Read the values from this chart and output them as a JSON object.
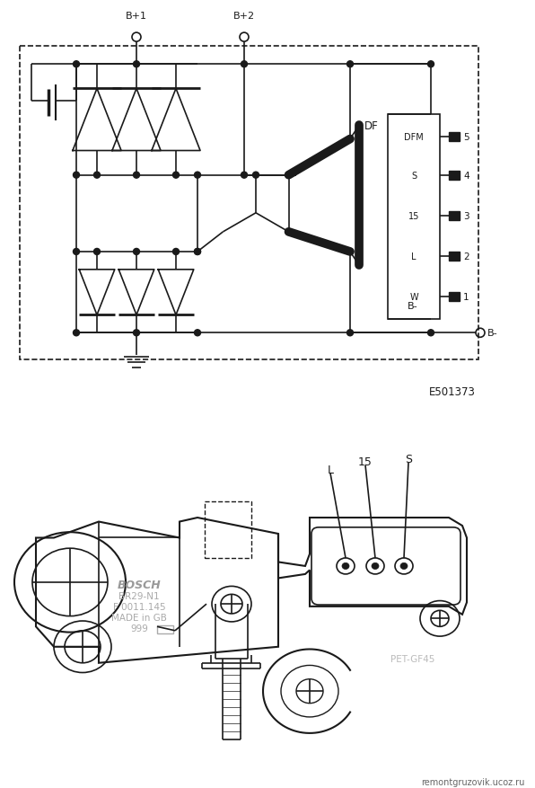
{
  "bg_color": "#ffffff",
  "line_color": "#1a1a1a",
  "fig_width": 5.96,
  "fig_height": 8.78,
  "dpi": 100,
  "circuit_ref": "E501373",
  "website": "remontgruzovik.ucoz.ru",
  "connector_labels": [
    "DFM",
    "S",
    "15",
    "L",
    "W"
  ],
  "connector_numbers": [
    "5",
    "4",
    "3",
    "2",
    "1"
  ],
  "pin_labels": [
    "L",
    "15",
    "S"
  ],
  "bosch_text": [
    "BOSCH",
    "BR29-N1",
    "F 0011.145",
    "MADE in GB",
    "999"
  ],
  "pet_text": "PET-GF45",
  "df_label": "DF",
  "bplus1": "B+1",
  "bplus2": "B+2",
  "bminus": "B-"
}
